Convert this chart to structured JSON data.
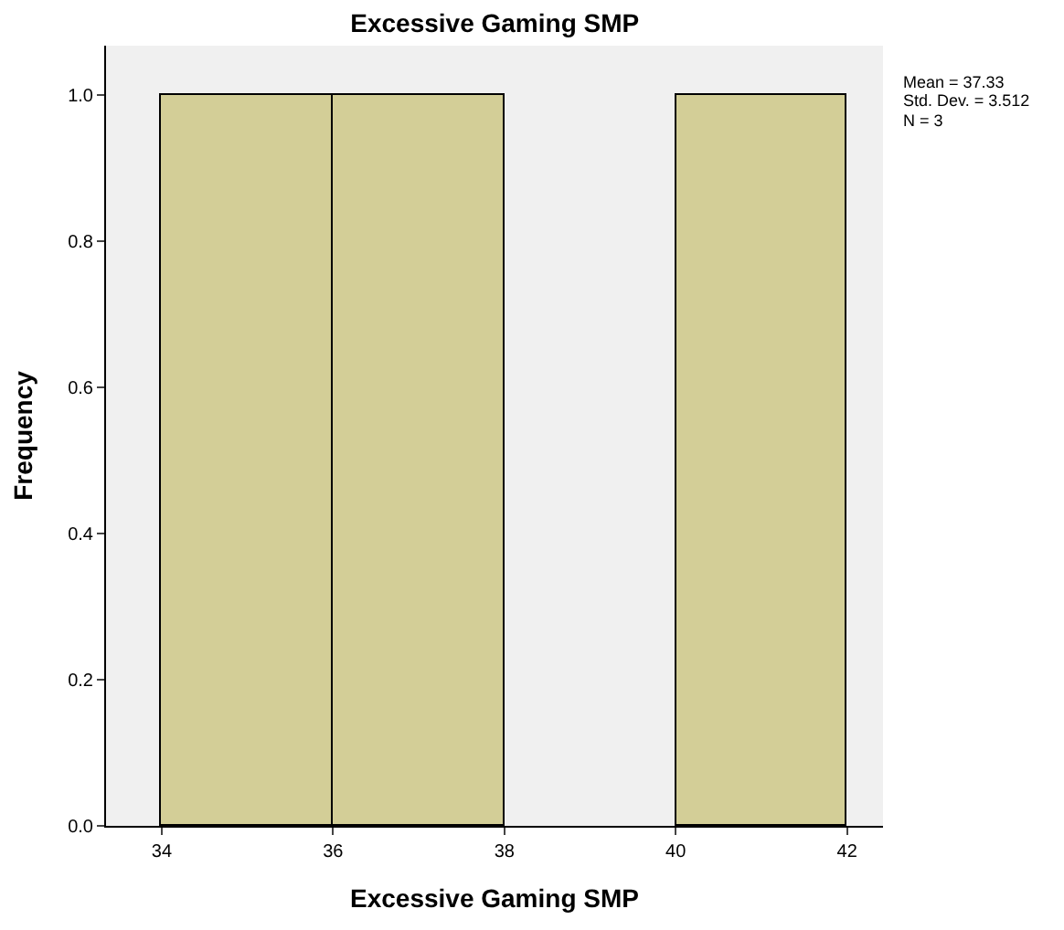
{
  "chart_data": {
    "type": "histogram",
    "title": "Excessive Gaming SMP",
    "xlabel": "Excessive Gaming SMP",
    "ylabel": "Frequency",
    "bins": [
      34,
      36,
      38,
      40,
      42
    ],
    "values": [
      1,
      1,
      0,
      1
    ],
    "color": "#d3ce97",
    "xlim": [
      33.35,
      42.42
    ],
    "xticks": [
      34,
      36,
      38,
      40,
      42
    ],
    "ylim": [
      0,
      1.067
    ],
    "yticks": [
      {
        "value": 0,
        "label": "0.0"
      },
      {
        "value": 0.2,
        "label": "0.2"
      },
      {
        "value": 0.4,
        "label": "0.4"
      },
      {
        "value": 0.6,
        "label": "0.6"
      },
      {
        "value": 0.8,
        "label": "0.8"
      },
      {
        "value": 1.0,
        "label": "1.0"
      }
    ],
    "annotations": [
      "Mean = 37.33",
      "Std. Dev. = 3.512",
      "N = 3"
    ],
    "grid": false
  }
}
